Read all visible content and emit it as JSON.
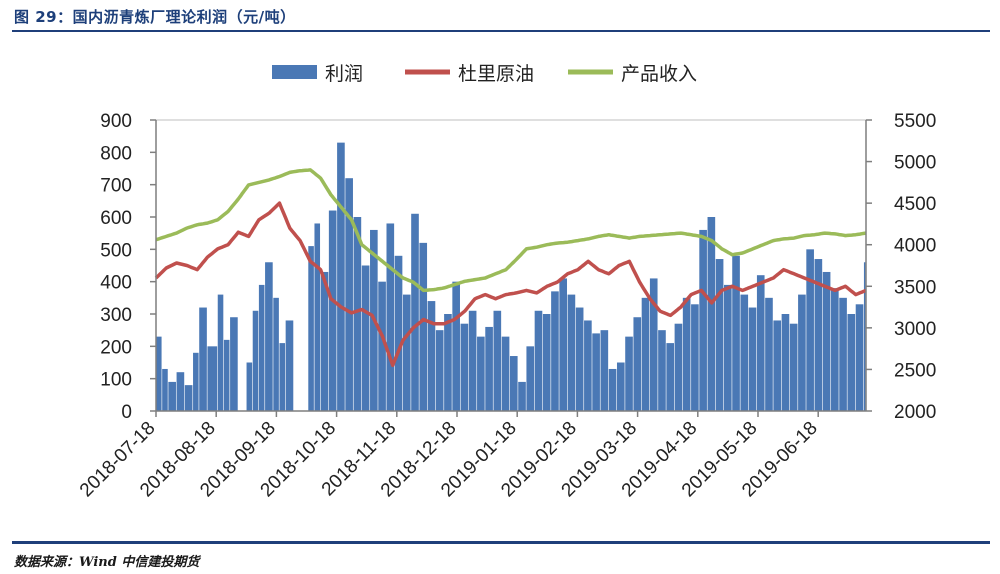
{
  "figure": {
    "title": "图 29：国内沥青炼厂理论利润（元/吨）",
    "source": "数据来源：Wind  中信建投期货"
  },
  "chart_data": {
    "type": "bar+line",
    "title": "国内沥青炼厂理论利润（元/吨）",
    "legend_position": "top",
    "x_ticks": [
      "2018-07-18",
      "2018-08-18",
      "2018-09-18",
      "2018-10-18",
      "2018-11-18",
      "2018-12-18",
      "2019-01-18",
      "2019-02-18",
      "2019-03-18",
      "2019-04-18",
      "2019-05-18",
      "2019-06-18"
    ],
    "y_left": {
      "min": 0,
      "max": 900,
      "ticks": [
        0,
        100,
        200,
        300,
        400,
        500,
        600,
        700,
        800,
        900
      ]
    },
    "y_right": {
      "min": 2000,
      "max": 5500,
      "ticks": [
        2000,
        2500,
        3000,
        3500,
        4000,
        4500,
        5000,
        5500
      ]
    },
    "colors": {
      "bar": "#4a78b5",
      "dubai": "#c0504d",
      "income": "#9bbb59"
    },
    "legend": [
      "利润",
      "杜里原油",
      "产品收入"
    ],
    "profit_anchor": {
      "day": [
        0,
        3,
        6,
        10,
        14,
        18,
        21,
        25,
        30,
        33,
        36,
        40,
        44,
        47,
        50,
        53,
        57,
        60,
        63,
        67,
        71,
        74,
        77,
        80,
        84,
        88,
        92,
        96,
        100,
        104,
        108,
        112,
        116,
        120,
        124,
        128,
        132,
        136,
        140,
        144,
        148,
        152,
        156,
        160,
        164,
        168,
        172,
        176,
        180,
        184,
        188,
        192,
        196,
        200,
        204,
        208,
        212,
        216,
        220,
        224,
        228,
        232,
        236,
        240,
        244,
        248,
        252,
        256,
        260,
        264,
        268,
        272,
        276,
        280,
        284,
        288,
        292,
        296,
        300,
        304,
        308,
        312,
        316,
        320,
        324,
        328,
        332,
        336,
        340,
        344
      ],
      "value": [
        230,
        130,
        90,
        120,
        80,
        180,
        320,
        200,
        360,
        220,
        290,
        0,
        150,
        310,
        390,
        460,
        350,
        210,
        280,
        0,
        0,
        510,
        580,
        430,
        620,
        830,
        720,
        600,
        450,
        560,
        400,
        580,
        480,
        360,
        610,
        520,
        340,
        250,
        300,
        400,
        270,
        310,
        230,
        260,
        310,
        230,
        170,
        90,
        200,
        310,
        300,
        370,
        410,
        360,
        320,
        280,
        240,
        250,
        130,
        150,
        230,
        290,
        350,
        410,
        250,
        210,
        270,
        350,
        330,
        560,
        600,
        470,
        390,
        480,
        360,
        320,
        420,
        350,
        280,
        300,
        270,
        360,
        500,
        470,
        430,
        380,
        350,
        300,
        330,
        460
      ]
    },
    "dubai_anchor": {
      "day": [
        0,
        5,
        10,
        15,
        20,
        25,
        30,
        35,
        40,
        45,
        50,
        55,
        60,
        65,
        70,
        75,
        80,
        85,
        90,
        95,
        100,
        105,
        110,
        115,
        120,
        125,
        130,
        135,
        140,
        145,
        150,
        155,
        160,
        165,
        170,
        175,
        180,
        185,
        190,
        195,
        200,
        205,
        210,
        215,
        220,
        225,
        230,
        235,
        240,
        245,
        250,
        255,
        260,
        265,
        270,
        275,
        280,
        285,
        290,
        295,
        300,
        305,
        310,
        315,
        320,
        325,
        330,
        335,
        340,
        345
      ],
      "value": [
        3600,
        3720,
        3780,
        3750,
        3700,
        3850,
        3950,
        4000,
        4150,
        4100,
        4300,
        4380,
        4500,
        4200,
        4050,
        3800,
        3700,
        3350,
        3250,
        3180,
        3220,
        3150,
        2900,
        2550,
        2850,
        3000,
        3100,
        3050,
        3050,
        3100,
        3200,
        3350,
        3400,
        3350,
        3400,
        3420,
        3450,
        3420,
        3500,
        3550,
        3650,
        3700,
        3800,
        3700,
        3650,
        3750,
        3800,
        3550,
        3350,
        3200,
        3150,
        3250,
        3400,
        3450,
        3300,
        3450,
        3500,
        3450,
        3500,
        3550,
        3600,
        3700,
        3650,
        3600,
        3550,
        3500,
        3450,
        3500,
        3400,
        3450
      ]
    },
    "income_anchor": {
      "day": [
        0,
        5,
        10,
        15,
        20,
        25,
        30,
        35,
        40,
        45,
        50,
        55,
        60,
        65,
        70,
        75,
        80,
        85,
        90,
        95,
        100,
        105,
        110,
        115,
        120,
        125,
        130,
        135,
        140,
        145,
        150,
        155,
        160,
        165,
        170,
        175,
        180,
        185,
        190,
        195,
        200,
        205,
        210,
        215,
        220,
        225,
        230,
        235,
        240,
        245,
        250,
        255,
        260,
        265,
        270,
        275,
        280,
        285,
        290,
        295,
        300,
        305,
        310,
        315,
        320,
        325,
        330,
        335,
        340,
        345
      ],
      "value": [
        4060,
        4100,
        4140,
        4200,
        4240,
        4260,
        4300,
        4400,
        4550,
        4720,
        4750,
        4780,
        4820,
        4870,
        4890,
        4900,
        4800,
        4600,
        4450,
        4300,
        4000,
        3900,
        3800,
        3700,
        3600,
        3550,
        3450,
        3460,
        3480,
        3520,
        3560,
        3580,
        3600,
        3650,
        3700,
        3820,
        3950,
        3970,
        4000,
        4020,
        4030,
        4050,
        4070,
        4100,
        4120,
        4100,
        4080,
        4100,
        4110,
        4120,
        4130,
        4140,
        4120,
        4100,
        4050,
        3950,
        3880,
        3900,
        3950,
        4000,
        4050,
        4070,
        4080,
        4110,
        4120,
        4140,
        4130,
        4110,
        4120,
        4140
      ]
    }
  }
}
